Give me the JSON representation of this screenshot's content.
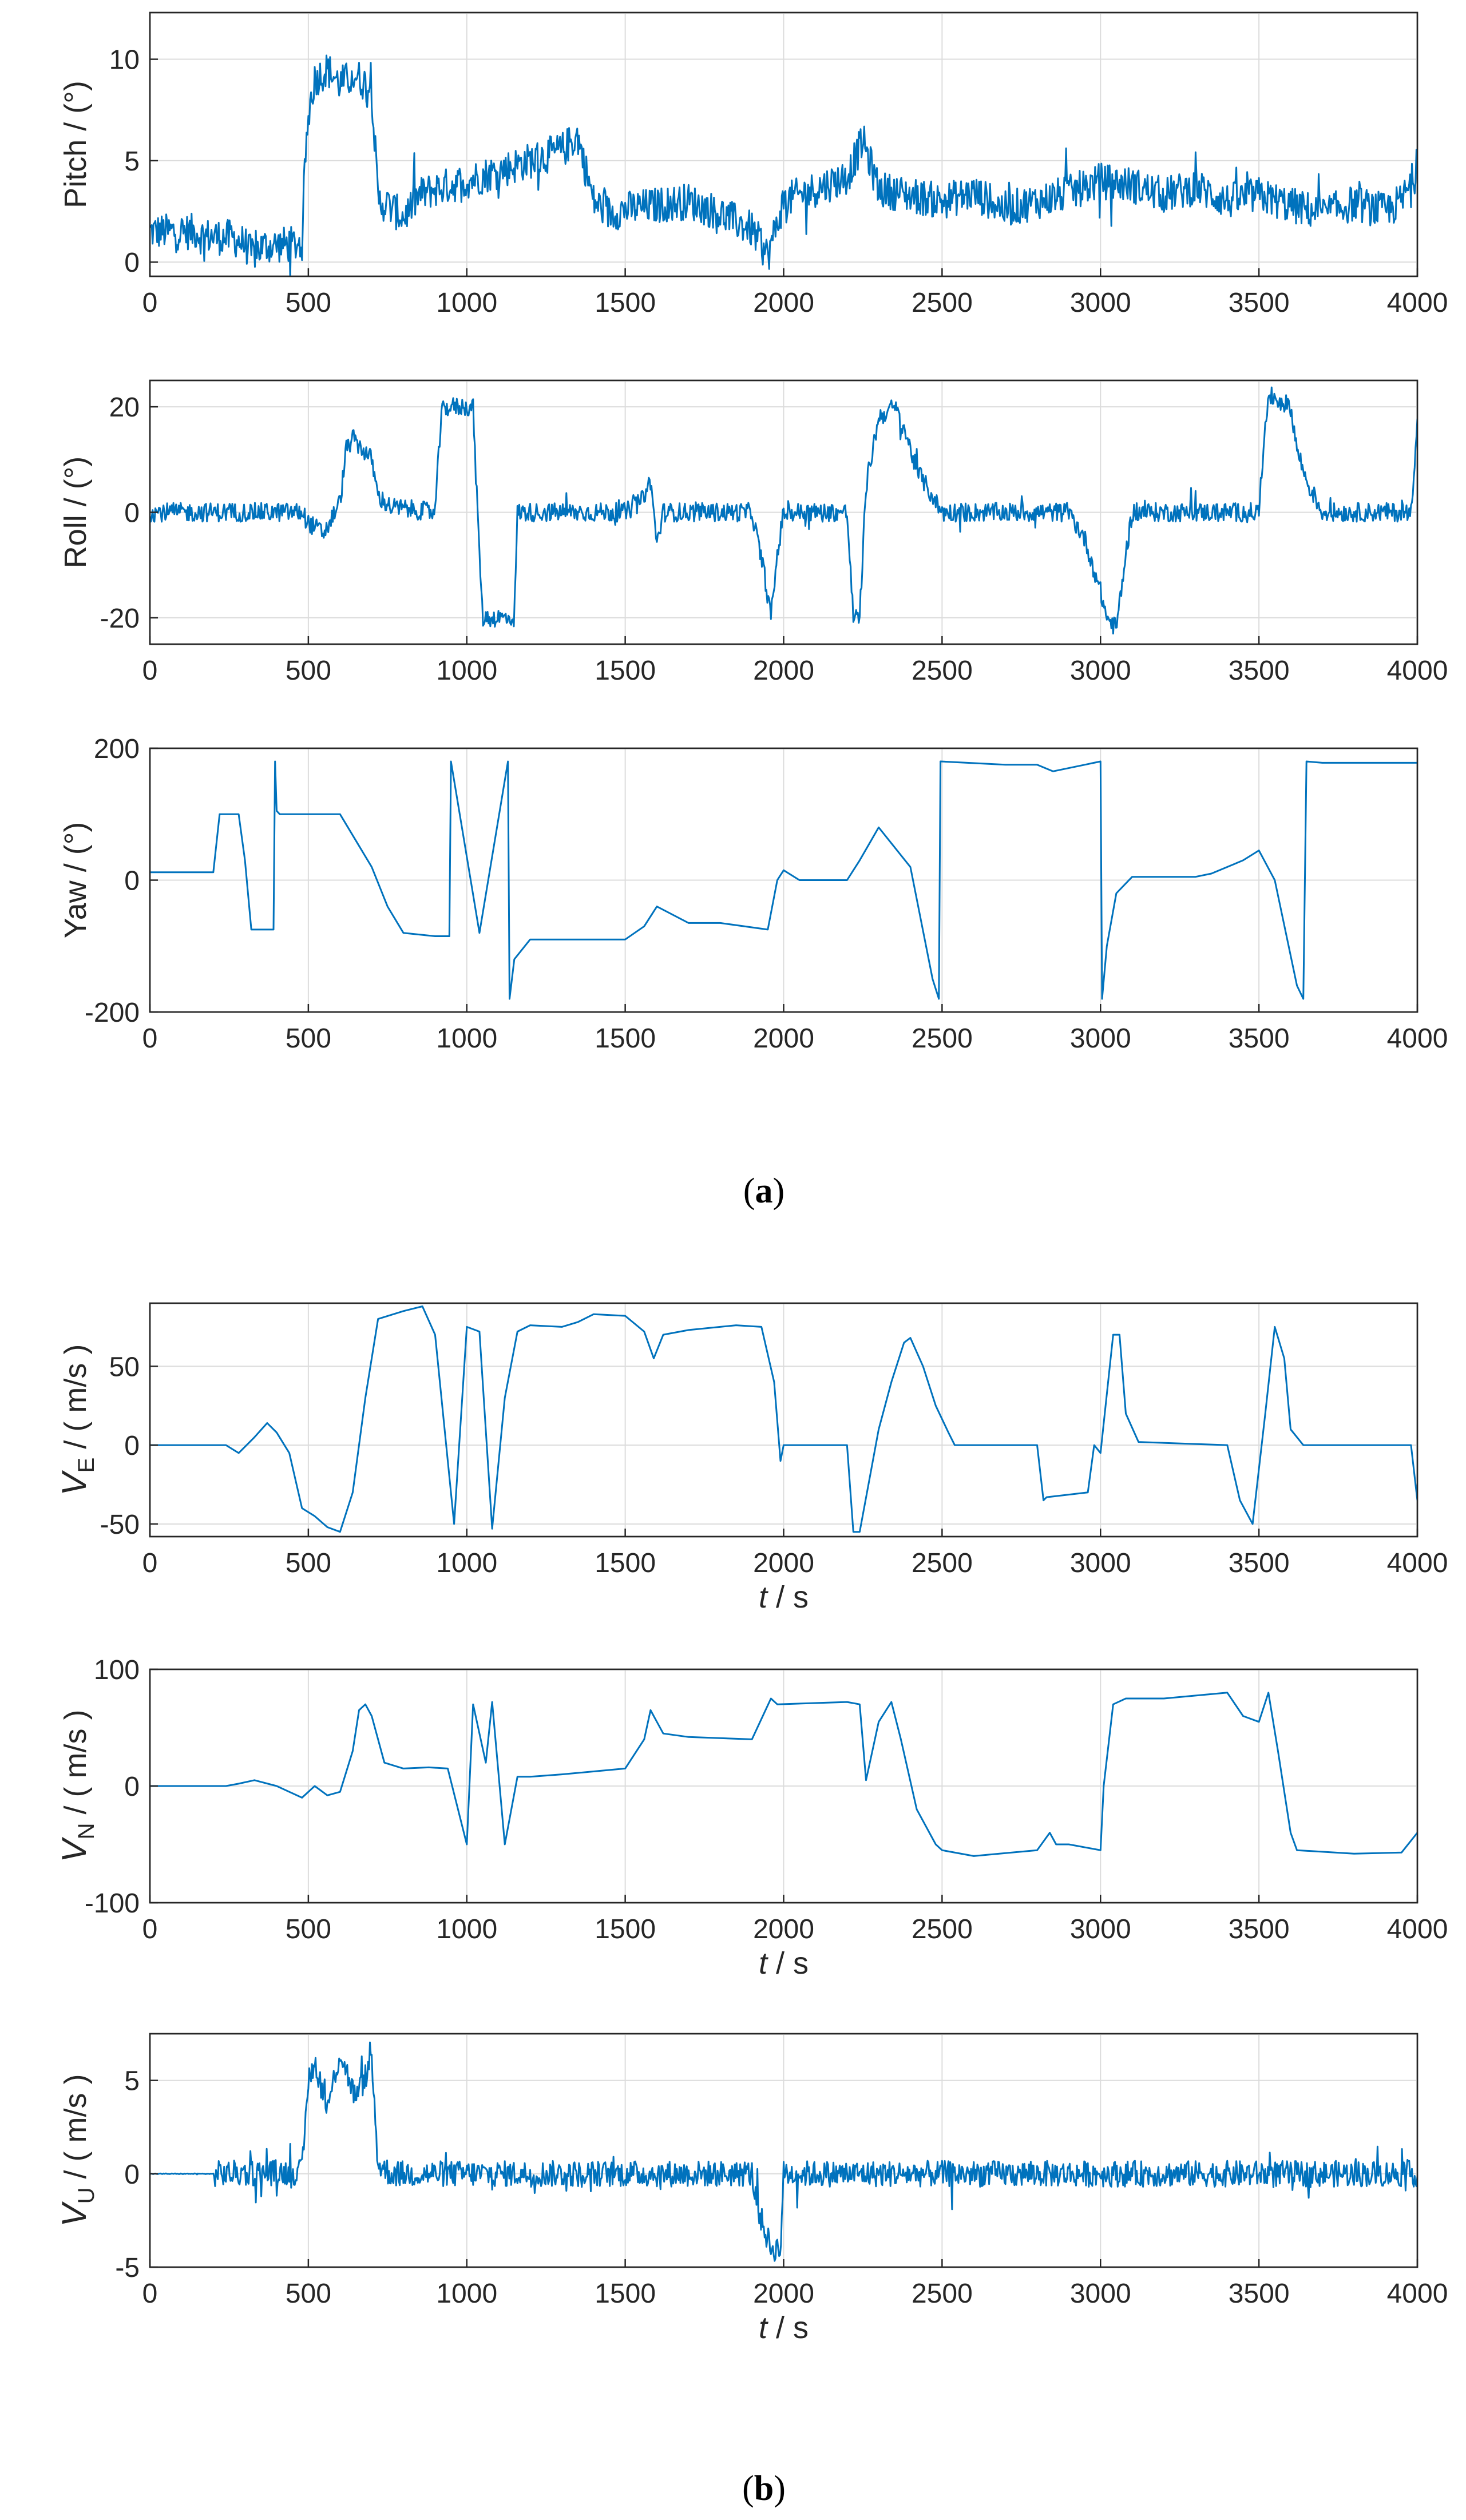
{
  "figure": {
    "caption_a": "a",
    "caption_b": "b",
    "series_color": "#0072bd"
  },
  "chart_data": [
    {
      "type": "line",
      "panel": "a",
      "ylabel": "Pitch  / (°)",
      "xlabel": "",
      "xlim": [
        0,
        4000
      ],
      "ylim": [
        -0.7,
        12.3
      ],
      "xticks": [
        0,
        500,
        1000,
        1500,
        2000,
        2500,
        3000,
        3500,
        4000
      ],
      "yticks": [
        0,
        5,
        10
      ],
      "grid": true,
      "noise": 0.9,
      "x": [
        0,
        150,
        160,
        260,
        300,
        320,
        360,
        480,
        490,
        505,
        520,
        560,
        600,
        650,
        700,
        720,
        750,
        800,
        850,
        900,
        1000,
        1100,
        1200,
        1300,
        1350,
        1400,
        1450,
        1500,
        1600,
        1700,
        1800,
        1900,
        1950,
        2000,
        2100,
        2200,
        2250,
        2300,
        2400,
        2500,
        2600,
        2700,
        2800,
        2900,
        3000,
        3100,
        3200,
        3300,
        3400,
        3500,
        3600,
        3700,
        3800,
        3900,
        3950,
        4000
      ],
      "y": [
        1.5,
        1.5,
        1.3,
        1.2,
        0.9,
        0.4,
        0.8,
        0.9,
        5.2,
        7.8,
        9.0,
        9.5,
        8.8,
        9.2,
        8.5,
        3.0,
        2.8,
        2.2,
        3.3,
        3.6,
        4.0,
        4.5,
        5.0,
        5.5,
        6.2,
        3.0,
        2.4,
        2.6,
        2.8,
        3.0,
        2.4,
        1.6,
        0.3,
        3.0,
        3.6,
        4.2,
        6.0,
        3.6,
        3.3,
        3.0,
        3.4,
        2.6,
        3.0,
        3.4,
        4.0,
        3.8,
        3.3,
        3.7,
        3.0,
        3.3,
        2.8,
        2.4,
        2.9,
        2.5,
        3.0,
        4.5
      ]
    },
    {
      "type": "line",
      "panel": "a",
      "ylabel": "Roll  / (°)",
      "xlabel": "",
      "xlim": [
        0,
        4000
      ],
      "ylim": [
        -25,
        25
      ],
      "xticks": [
        0,
        500,
        1000,
        1500,
        2000,
        2500,
        3000,
        3500,
        4000
      ],
      "yticks": [
        -20,
        0,
        20
      ],
      "grid": true,
      "noise": 1.8,
      "x": [
        0,
        200,
        480,
        500,
        550,
        600,
        620,
        640,
        700,
        720,
        760,
        900,
        920,
        940,
        1020,
        1030,
        1050,
        1150,
        1160,
        1200,
        1500,
        1550,
        1580,
        1600,
        1620,
        1900,
        1940,
        1960,
        1980,
        2000,
        2200,
        2220,
        2240,
        2260,
        2300,
        2350,
        2380,
        2420,
        2480,
        2500,
        2700,
        2900,
        2950,
        3000,
        3020,
        3050,
        3080,
        3100,
        3500,
        3520,
        3540,
        3600,
        3620,
        3650,
        3700,
        3980,
        4000
      ],
      "y": [
        0,
        0,
        0,
        -2,
        -4,
        2,
        12,
        14,
        10,
        3,
        1,
        0,
        19,
        20,
        20,
        5,
        -20,
        -20,
        0,
        0,
        0,
        2,
        6,
        -6,
        0,
        0,
        -12,
        -20,
        -8,
        0,
        0,
        -20,
        -20,
        5,
        18,
        20,
        16,
        8,
        2,
        0,
        0,
        0,
        -5,
        -15,
        -20,
        -22,
        -8,
        0,
        0,
        18,
        22,
        20,
        12,
        6,
        0,
        0,
        18
      ]
    },
    {
      "type": "line",
      "panel": "a",
      "ylabel": "Yaw  / (°)",
      "xlabel": "",
      "xlim": [
        0,
        4000
      ],
      "ylim": [
        -200,
        200
      ],
      "xticks": [
        0,
        500,
        1000,
        1500,
        2000,
        2500,
        3000,
        3500,
        4000
      ],
      "yticks": [
        -200,
        0,
        200
      ],
      "grid": true,
      "noise": 0,
      "x": [
        0,
        200,
        220,
        280,
        300,
        320,
        350,
        390,
        395,
        400,
        410,
        500,
        600,
        700,
        750,
        800,
        900,
        945,
        950,
        1040,
        1130,
        1135,
        1150,
        1200,
        1300,
        1500,
        1560,
        1600,
        1700,
        1800,
        1950,
        1980,
        2000,
        2050,
        2200,
        2240,
        2300,
        2400,
        2470,
        2490,
        2495,
        2700,
        2800,
        2850,
        2950,
        3000,
        3005,
        3020,
        3050,
        3100,
        3300,
        3350,
        3450,
        3500,
        3550,
        3620,
        3640,
        3650,
        3700,
        4000
      ],
      "y": [
        12,
        12,
        100,
        100,
        30,
        -75,
        -75,
        -75,
        180,
        105,
        100,
        100,
        100,
        20,
        -40,
        -80,
        -85,
        -85,
        180,
        -80,
        180,
        -180,
        -120,
        -90,
        -90,
        -90,
        -70,
        -40,
        -65,
        -65,
        -75,
        0,
        15,
        0,
        0,
        30,
        80,
        20,
        -150,
        -180,
        180,
        175,
        175,
        165,
        175,
        180,
        -180,
        -100,
        -20,
        5,
        5,
        10,
        30,
        45,
        0,
        -160,
        -180,
        180,
        178,
        178
      ]
    },
    {
      "type": "line",
      "panel": "b",
      "ylabel": "V_E / ( m/s )",
      "ylabel_main": "V",
      "ylabel_sub": "E",
      "ylabel_unit": " / ( m/s )",
      "xlabel": "t  / s",
      "xlabel_main": "t",
      "xlabel_unit": "  / s",
      "xlim": [
        0,
        4000
      ],
      "ylim": [
        -58,
        90
      ],
      "xticks": [
        0,
        500,
        1000,
        1500,
        2000,
        2500,
        3000,
        3500,
        4000
      ],
      "yticks": [
        -50,
        0,
        50
      ],
      "grid": true,
      "noise": 0,
      "x": [
        0,
        240,
        280,
        330,
        370,
        400,
        440,
        480,
        520,
        560,
        600,
        640,
        680,
        720,
        800,
        860,
        900,
        960,
        1000,
        1040,
        1080,
        1120,
        1160,
        1200,
        1300,
        1350,
        1400,
        1500,
        1560,
        1590,
        1620,
        1700,
        1850,
        1930,
        1970,
        1990,
        2000,
        2200,
        2220,
        2240,
        2300,
        2340,
        2380,
        2400,
        2440,
        2480,
        2520,
        2540,
        2560,
        2800,
        2820,
        2830,
        2960,
        2980,
        3000,
        3040,
        3060,
        3080,
        3120,
        3400,
        3440,
        3480,
        3520,
        3550,
        3580,
        3600,
        3640,
        3980,
        4000
      ],
      "y": [
        0,
        0,
        -5,
        5,
        14,
        8,
        -5,
        -40,
        -45,
        -52,
        -55,
        -30,
        30,
        80,
        85,
        88,
        70,
        -50,
        75,
        72,
        -53,
        30,
        72,
        76,
        75,
        78,
        83,
        82,
        72,
        55,
        70,
        73,
        76,
        75,
        40,
        -10,
        0,
        0,
        -55,
        -55,
        10,
        40,
        65,
        68,
        50,
        25,
        8,
        0,
        0,
        0,
        -35,
        -33,
        -30,
        0,
        -5,
        70,
        70,
        20,
        2,
        0,
        -35,
        -50,
        20,
        75,
        55,
        10,
        0,
        0,
        -35
      ]
    },
    {
      "type": "line",
      "panel": "b",
      "ylabel": "V_N / ( m/s )",
      "ylabel_main": "V",
      "ylabel_sub": "N",
      "ylabel_unit": " / ( m/s )",
      "xlabel": "t  / s",
      "xlabel_main": "t",
      "xlabel_unit": "  / s",
      "xlim": [
        0,
        4000
      ],
      "ylim": [
        -100,
        100
      ],
      "xticks": [
        0,
        500,
        1000,
        1500,
        2000,
        2500,
        3000,
        3500,
        4000
      ],
      "yticks": [
        -100,
        0,
        100
      ],
      "grid": true,
      "noise": 0,
      "x": [
        0,
        240,
        280,
        330,
        400,
        480,
        520,
        560,
        600,
        640,
        660,
        680,
        700,
        740,
        800,
        880,
        940,
        1000,
        1020,
        1060,
        1080,
        1120,
        1160,
        1200,
        1300,
        1500,
        1560,
        1580,
        1600,
        1620,
        1700,
        1900,
        1960,
        1980,
        2200,
        2240,
        2260,
        2300,
        2340,
        2370,
        2420,
        2480,
        2500,
        2600,
        2800,
        2840,
        2860,
        2900,
        3000,
        3010,
        3040,
        3080,
        3200,
        3400,
        3450,
        3500,
        3530,
        3560,
        3600,
        3620,
        3800,
        3950,
        4000
      ],
      "y": [
        0,
        0,
        2,
        5,
        0,
        -10,
        0,
        -8,
        -5,
        30,
        65,
        70,
        60,
        20,
        15,
        16,
        15,
        -50,
        70,
        20,
        72,
        -50,
        8,
        8,
        10,
        15,
        40,
        65,
        55,
        45,
        42,
        40,
        75,
        70,
        72,
        70,
        5,
        55,
        72,
        40,
        -20,
        -50,
        -55,
        -60,
        -55,
        -40,
        -50,
        -50,
        -55,
        0,
        70,
        75,
        75,
        80,
        60,
        55,
        80,
        30,
        -40,
        -55,
        -58,
        -57,
        -40
      ]
    },
    {
      "type": "line",
      "panel": "b",
      "ylabel": "V_U / ( m/s )",
      "ylabel_main": "V",
      "ylabel_sub": "U",
      "ylabel_unit": " / ( m/s )",
      "xlabel": "t  / s",
      "xlabel_main": "t",
      "xlabel_unit": "  / s",
      "xlim": [
        0,
        4000
      ],
      "ylim": [
        -5,
        7.5
      ],
      "xticks": [
        0,
        500,
        1000,
        1500,
        2000,
        2500,
        3000,
        3500,
        4000
      ],
      "yticks": [
        -5,
        0,
        5
      ],
      "grid": true,
      "noise": 0.7,
      "x": [
        0,
        200,
        480,
        500,
        520,
        560,
        600,
        650,
        700,
        720,
        760,
        900,
        1100,
        1300,
        1500,
        1700,
        1900,
        1920,
        1960,
        1990,
        2000,
        2100,
        2500,
        3000,
        3500,
        4000
      ],
      "y": [
        0,
        0,
        0.1,
        5,
        6,
        3.5,
        6.5,
        4,
        6,
        0.5,
        0,
        0,
        0,
        0,
        0,
        0,
        0,
        -2,
        -4,
        -4,
        0,
        0,
        0,
        0,
        0,
        0
      ]
    }
  ]
}
